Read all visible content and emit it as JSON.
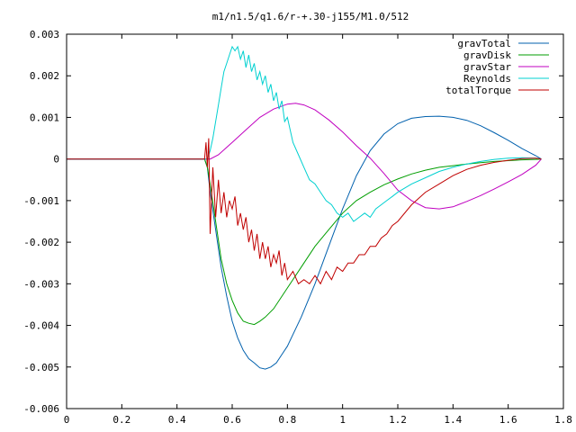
{
  "chart_data": {
    "type": "line",
    "title": "m1/n1.5/q1.6/r-+.30-j155/M1.0/512",
    "xlabel": "",
    "ylabel": "",
    "xlim": [
      0,
      1.8
    ],
    "ylim": [
      -0.006,
      0.003
    ],
    "grid": false,
    "legend_position": "top-right",
    "xticks": [
      0,
      0.2,
      0.4,
      0.6,
      0.8,
      1,
      1.2,
      1.4,
      1.6,
      1.8
    ],
    "xtick_labels": [
      "0",
      "0.2",
      "0.4",
      "0.6",
      "0.8",
      "1",
      "1.2",
      "1.4",
      "1.6",
      "1.8"
    ],
    "yticks": [
      0.003,
      0.002,
      0.001,
      0,
      -0.001,
      -0.002,
      -0.003,
      -0.004,
      -0.005,
      -0.006
    ],
    "ytick_labels": [
      "0.003",
      "0.002",
      "0.001",
      "0",
      "-0.001",
      "-0.002",
      "-0.003",
      "-0.004",
      "-0.005",
      "-0.006"
    ],
    "series": [
      {
        "name": "gravTotal",
        "color": "#0060ad",
        "x": [
          0,
          0.5,
          0.51,
          0.52,
          0.54,
          0.56,
          0.58,
          0.6,
          0.62,
          0.64,
          0.66,
          0.68,
          0.7,
          0.72,
          0.74,
          0.76,
          0.78,
          0.8,
          0.85,
          0.9,
          0.95,
          1.0,
          1.05,
          1.1,
          1.15,
          1.2,
          1.25,
          1.3,
          1.35,
          1.4,
          1.45,
          1.5,
          1.55,
          1.6,
          1.65,
          1.7,
          1.72
        ],
        "y": [
          0,
          0,
          -0.0002,
          -0.0008,
          -0.0017,
          -0.0026,
          -0.0033,
          -0.0039,
          -0.0043,
          -0.0046,
          -0.0048,
          -0.0049,
          -0.00502,
          -0.00505,
          -0.005,
          -0.0049,
          -0.0047,
          -0.0045,
          -0.0038,
          -0.003,
          -0.0021,
          -0.0012,
          -0.0004,
          0.0002,
          0.0006,
          0.00085,
          0.00098,
          0.00102,
          0.00103,
          0.001,
          0.00093,
          0.0008,
          0.00063,
          0.00045,
          0.00025,
          8e-05,
          0
        ]
      },
      {
        "name": "gravDisk",
        "color": "#009e00",
        "x": [
          0,
          0.5,
          0.51,
          0.52,
          0.54,
          0.56,
          0.58,
          0.6,
          0.62,
          0.64,
          0.66,
          0.68,
          0.7,
          0.72,
          0.75,
          0.8,
          0.85,
          0.9,
          0.95,
          1.0,
          1.05,
          1.1,
          1.15,
          1.2,
          1.25,
          1.3,
          1.35,
          1.4,
          1.45,
          1.5,
          1.55,
          1.6,
          1.65,
          1.7,
          1.72
        ],
        "y": [
          0,
          0,
          -0.0002,
          -0.0006,
          -0.0015,
          -0.0024,
          -0.003,
          -0.0034,
          -0.0037,
          -0.0039,
          -0.00395,
          -0.00398,
          -0.0039,
          -0.0038,
          -0.0036,
          -0.0031,
          -0.0026,
          -0.0021,
          -0.0017,
          -0.0013,
          -0.001,
          -0.0008,
          -0.00062,
          -0.00048,
          -0.00036,
          -0.00027,
          -0.0002,
          -0.00016,
          -0.00012,
          -9e-05,
          -6e-05,
          -4e-05,
          -2e-05,
          -1e-05,
          0
        ]
      },
      {
        "name": "gravStar",
        "color": "#c000c0",
        "x": [
          0,
          0.5,
          0.52,
          0.55,
          0.6,
          0.65,
          0.7,
          0.75,
          0.8,
          0.83,
          0.86,
          0.9,
          0.95,
          1.0,
          1.05,
          1.1,
          1.15,
          1.2,
          1.25,
          1.3,
          1.35,
          1.4,
          1.45,
          1.5,
          1.55,
          1.6,
          1.65,
          1.7,
          1.72
        ],
        "y": [
          0,
          0,
          0,
          0.0001,
          0.0004,
          0.0007,
          0.001,
          0.0012,
          0.00132,
          0.00134,
          0.0013,
          0.00118,
          0.00094,
          0.00065,
          0.00032,
          2e-05,
          -0.00035,
          -0.00075,
          -0.001,
          -0.00117,
          -0.0012,
          -0.00115,
          -0.00102,
          -0.00088,
          -0.00072,
          -0.00055,
          -0.00037,
          -0.00015,
          0
        ]
      },
      {
        "name": "Reynolds",
        "color": "#00d0d0",
        "x": [
          0,
          0.5,
          0.51,
          0.52,
          0.53,
          0.54,
          0.55,
          0.56,
          0.57,
          0.58,
          0.59,
          0.6,
          0.61,
          0.62,
          0.63,
          0.64,
          0.65,
          0.66,
          0.67,
          0.68,
          0.69,
          0.7,
          0.71,
          0.72,
          0.73,
          0.74,
          0.75,
          0.76,
          0.77,
          0.78,
          0.79,
          0.8,
          0.82,
          0.84,
          0.86,
          0.88,
          0.9,
          0.92,
          0.94,
          0.96,
          0.98,
          1.0,
          1.02,
          1.04,
          1.06,
          1.08,
          1.1,
          1.12,
          1.14,
          1.16,
          1.18,
          1.2,
          1.25,
          1.3,
          1.35,
          1.4,
          1.45,
          1.5,
          1.55,
          1.6,
          1.65,
          1.7,
          1.72
        ],
        "y": [
          0,
          0,
          0,
          0.0002,
          0.0005,
          0.0009,
          0.0013,
          0.0017,
          0.0021,
          0.0023,
          0.0025,
          0.0027,
          0.0026,
          0.0027,
          0.0024,
          0.0026,
          0.0022,
          0.0025,
          0.0021,
          0.0023,
          0.0019,
          0.0021,
          0.0018,
          0.002,
          0.0016,
          0.0018,
          0.0014,
          0.0016,
          0.0012,
          0.0014,
          0.0009,
          0.001,
          0.0004,
          0.0001,
          -0.0002,
          -0.0005,
          -0.0006,
          -0.0008,
          -0.001,
          -0.0011,
          -0.0013,
          -0.0014,
          -0.0013,
          -0.0015,
          -0.0014,
          -0.0013,
          -0.0014,
          -0.0012,
          -0.0011,
          -0.001,
          -0.0009,
          -0.0008,
          -0.0006,
          -0.00045,
          -0.0003,
          -0.0002,
          -0.00012,
          -6e-05,
          -1e-05,
          2e-05,
          3e-05,
          2e-05,
          0
        ]
      },
      {
        "name": "totalTorque",
        "color": "#c00000",
        "x": [
          0,
          0.5,
          0.505,
          0.51,
          0.515,
          0.52,
          0.53,
          0.54,
          0.55,
          0.56,
          0.57,
          0.58,
          0.59,
          0.6,
          0.61,
          0.62,
          0.63,
          0.64,
          0.65,
          0.66,
          0.67,
          0.68,
          0.69,
          0.7,
          0.71,
          0.72,
          0.73,
          0.74,
          0.75,
          0.76,
          0.77,
          0.78,
          0.79,
          0.8,
          0.82,
          0.84,
          0.86,
          0.88,
          0.9,
          0.92,
          0.94,
          0.96,
          0.98,
          1.0,
          1.02,
          1.04,
          1.06,
          1.08,
          1.1,
          1.12,
          1.14,
          1.16,
          1.18,
          1.2,
          1.25,
          1.3,
          1.35,
          1.4,
          1.45,
          1.5,
          1.55,
          1.6,
          1.65,
          1.7,
          1.72
        ],
        "y": [
          0,
          0,
          0.0004,
          -0.0002,
          0.0005,
          -0.0018,
          -0.0002,
          -0.0014,
          -0.0005,
          -0.0013,
          -0.0008,
          -0.0014,
          -0.001,
          -0.0012,
          -0.0009,
          -0.0016,
          -0.0013,
          -0.0017,
          -0.0014,
          -0.002,
          -0.0017,
          -0.0022,
          -0.0018,
          -0.0024,
          -0.002,
          -0.0024,
          -0.0021,
          -0.0026,
          -0.0023,
          -0.0025,
          -0.0022,
          -0.0028,
          -0.0025,
          -0.0029,
          -0.0027,
          -0.003,
          -0.0029,
          -0.003,
          -0.0028,
          -0.003,
          -0.0027,
          -0.0029,
          -0.0026,
          -0.0027,
          -0.0025,
          -0.0025,
          -0.0023,
          -0.0023,
          -0.0021,
          -0.0021,
          -0.0019,
          -0.0018,
          -0.0016,
          -0.0015,
          -0.0011,
          -0.0008,
          -0.0006,
          -0.0004,
          -0.00025,
          -0.00015,
          -8e-05,
          -3e-05,
          1e-05,
          2e-05,
          0
        ]
      }
    ]
  }
}
